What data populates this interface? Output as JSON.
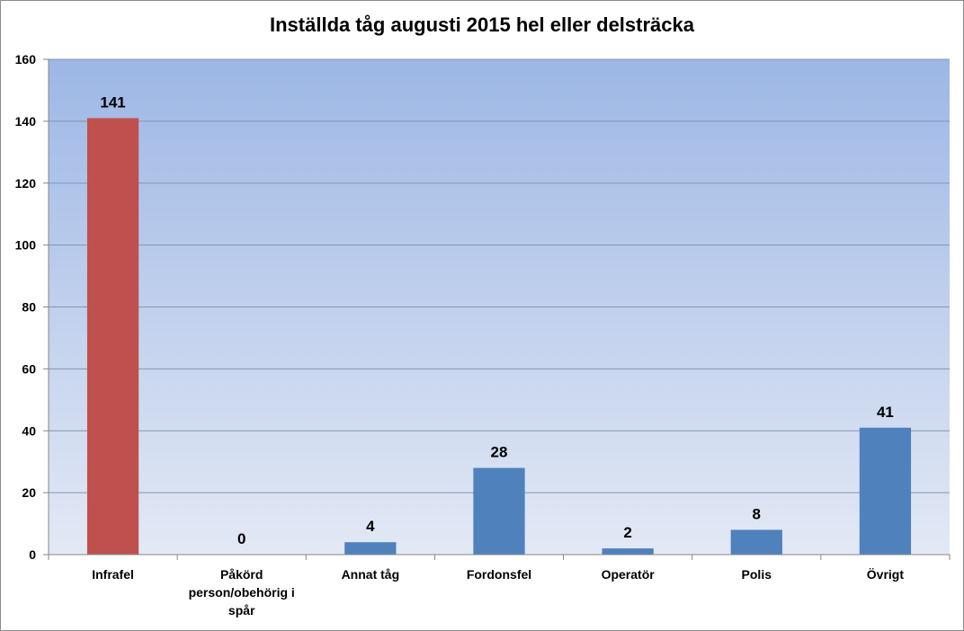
{
  "chart_data": {
    "type": "bar",
    "title": "Inställda tåg augusti 2015 hel eller delsträcka",
    "xlabel": "",
    "ylabel": "",
    "categories": [
      [
        "Infrafel"
      ],
      [
        "Påkörd",
        "person/obehörig i",
        "spår"
      ],
      [
        "Annat tåg"
      ],
      [
        "Fordonsfel"
      ],
      [
        "Operatör"
      ],
      [
        "Polis"
      ],
      [
        "Övrigt"
      ]
    ],
    "values": [
      141,
      0,
      4,
      28,
      2,
      8,
      41
    ],
    "data_labels": [
      "141",
      "0",
      "4",
      "28",
      "2",
      "8",
      "41"
    ],
    "yticks": [
      "0",
      "20",
      "40",
      "60",
      "80",
      "100",
      "120",
      "140",
      "160"
    ],
    "ylim": [
      0,
      160
    ],
    "ytick_step": 20,
    "grid": true,
    "legend": "none",
    "colors": {
      "highlight_bar": "#c0504d",
      "bar": "#4f81bd",
      "plot_top": "#9db7e5",
      "plot_bottom": "#e3e9f5",
      "gridline": "#8496b0"
    },
    "highlight_index": 0
  }
}
